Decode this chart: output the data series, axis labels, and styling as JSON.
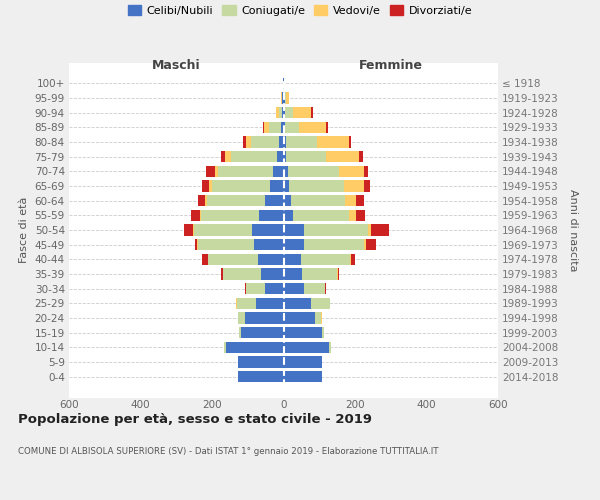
{
  "age_groups": [
    "100+",
    "95-99",
    "90-94",
    "85-89",
    "80-84",
    "75-79",
    "70-74",
    "65-69",
    "60-64",
    "55-59",
    "50-54",
    "45-49",
    "40-44",
    "35-39",
    "30-34",
    "25-29",
    "20-24",
    "15-19",
    "10-14",
    "5-9",
    "0-4"
  ],
  "birth_years": [
    "≤ 1918",
    "1919-1923",
    "1924-1928",
    "1929-1933",
    "1934-1938",
    "1939-1943",
    "1944-1948",
    "1949-1953",
    "1954-1958",
    "1959-1963",
    "1964-1968",
    "1969-1973",
    "1974-1978",
    "1979-1983",
    "1984-1988",
    "1989-1993",
    "1994-1998",
    "1999-2003",
    "2004-2008",
    "2009-2013",
    "2014-2018"
  ],
  "colors": {
    "celibe": "#4472C4",
    "coniugato": "#c5d9a0",
    "vedovo": "#FFCC66",
    "divorziato": "#CC2222"
  },
  "maschi": {
    "celibe": [
      2,
      3,
      5,
      8,
      12,
      18,
      30,
      38,
      52,
      68,
      88,
      82,
      72,
      62,
      52,
      78,
      108,
      118,
      162,
      128,
      128
    ],
    "coniugato": [
      0,
      2,
      8,
      32,
      78,
      128,
      152,
      162,
      162,
      162,
      162,
      158,
      138,
      108,
      52,
      52,
      18,
      6,
      4,
      0,
      0
    ],
    "vedovo": [
      0,
      2,
      8,
      14,
      16,
      18,
      10,
      8,
      6,
      4,
      2,
      2,
      0,
      0,
      2,
      2,
      2,
      0,
      0,
      0,
      0
    ],
    "divorziato": [
      0,
      0,
      0,
      4,
      8,
      10,
      26,
      20,
      20,
      26,
      26,
      6,
      18,
      4,
      2,
      0,
      0,
      0,
      0,
      0,
      0
    ]
  },
  "femmine": {
    "celibe": [
      2,
      3,
      4,
      4,
      6,
      8,
      12,
      16,
      20,
      26,
      58,
      58,
      48,
      52,
      58,
      78,
      88,
      108,
      128,
      108,
      108
    ],
    "coniugato": [
      0,
      4,
      22,
      38,
      88,
      112,
      142,
      152,
      152,
      158,
      178,
      168,
      138,
      98,
      58,
      52,
      18,
      6,
      4,
      0,
      0
    ],
    "vedovo": [
      0,
      8,
      52,
      78,
      88,
      92,
      72,
      58,
      32,
      18,
      8,
      6,
      4,
      2,
      0,
      0,
      2,
      0,
      0,
      0,
      0
    ],
    "divorziato": [
      0,
      0,
      4,
      4,
      6,
      10,
      10,
      16,
      20,
      26,
      50,
      26,
      10,
      2,
      2,
      0,
      0,
      0,
      0,
      0,
      0
    ]
  },
  "title": "Popolazione per età, sesso e stato civile - 2019",
  "subtitle": "COMUNE DI ALBISOLA SUPERIORE (SV) - Dati ISTAT 1° gennaio 2019 - Elaborazione TUTTITALIA.IT",
  "xlabel_left": "Maschi",
  "xlabel_right": "Femmine",
  "ylabel_left": "Fasce di età",
  "ylabel_right": "Anni di nascita",
  "xlim": 600,
  "background_color": "#efefef",
  "plot_bg": "#ffffff",
  "legend_labels": [
    "Celibi/Nubili",
    "Coniugati/e",
    "Vedovi/e",
    "Divorziati/e"
  ]
}
